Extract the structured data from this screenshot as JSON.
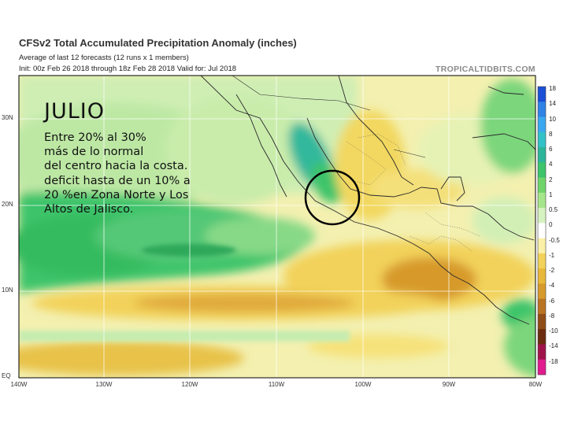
{
  "header": {
    "title": "CFSv2 Total Accumulated Precipitation Anomaly (inches)",
    "subtitle": "Average of last 12 forecasts (12 runs x 1 members)",
    "init_valid": "Init: 00z Feb 26 2018 through 18z Feb 28 2018          Valid for: Jul 2018",
    "brand": "TROPICALTIDBITS.COM"
  },
  "map": {
    "lat_labels": [
      "30N",
      "20N",
      "10N",
      "EQ"
    ],
    "lon_labels": [
      "140W",
      "130W",
      "120W",
      "110W",
      "100W",
      "90W",
      "80W"
    ]
  },
  "colorbar": {
    "ticks": [
      "18",
      "14",
      "10",
      "8",
      "6",
      "4",
      "2",
      "1",
      "0.5",
      "0",
      "-0.5",
      "-1",
      "-2",
      "-4",
      "-6",
      "-8",
      "-10",
      "-14",
      "-18"
    ],
    "colors": [
      "#1a4fd6",
      "#2f82e6",
      "#3aa8f0",
      "#33c2c7",
      "#2db59a",
      "#3ec46a",
      "#6fd56a",
      "#a6e68a",
      "#d6f2c0",
      "#ffffff",
      "#fbf0a8",
      "#f2d25a",
      "#e8b83a",
      "#d79a2c",
      "#b97322",
      "#8f4e17",
      "#6b2b0e",
      "#a0134a",
      "#e01c8f"
    ]
  },
  "overlay": {
    "month": "JULIO",
    "lines": [
      "Entre 20% al 30%",
      "más de lo normal",
      "del centro hacia la costa.",
      "deficit hasta de un 10% a",
      "20 %en Zona Norte y Los",
      "Altos de Jalisco."
    ]
  }
}
